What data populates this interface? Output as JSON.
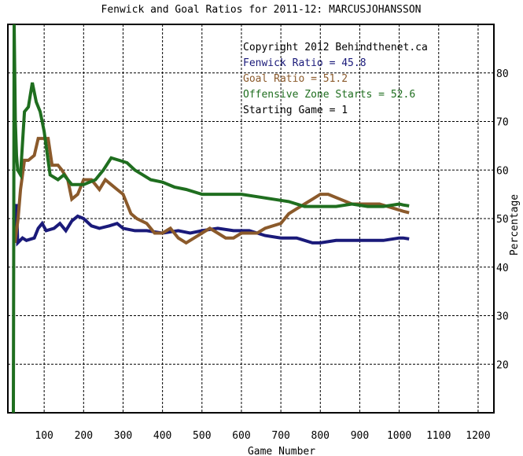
{
  "chart_data": {
    "type": "line",
    "title": "Fenwick and Goal Ratios for 2011-12: MARCUSJOHANSSON",
    "xlabel": "Game Number",
    "ylabel": "Percentage",
    "xlim": [
      8,
      1240
    ],
    "ylim": [
      10,
      90
    ],
    "x_ticks": [
      100,
      200,
      300,
      400,
      500,
      600,
      700,
      800,
      900,
      1000,
      1100,
      1200
    ],
    "y_ticks": [
      20,
      30,
      40,
      50,
      60,
      70,
      80
    ],
    "grid": true,
    "legend": {
      "position": "top-right",
      "lines": [
        {
          "text": "Copyright 2012 Behindthenet.ca",
          "color": "#000000"
        },
        {
          "text": "Fenwick Ratio = 45.8",
          "color": "#1a1a7a"
        },
        {
          "text": "Goal Ratio = 51.2",
          "color": "#8b5a2b"
        },
        {
          "text": "Offensive Zone Starts = 52.6",
          "color": "#1f6e1f"
        },
        {
          "text": "Starting Game = 1",
          "color": "#000000"
        }
      ]
    },
    "series": [
      {
        "name": "Fenwick Ratio",
        "color": "#1a1a7a",
        "points": [
          [
            26,
            45
          ],
          [
            30,
            53
          ],
          [
            33,
            45
          ],
          [
            45,
            46
          ],
          [
            55,
            45.5
          ],
          [
            75,
            46
          ],
          [
            85,
            48
          ],
          [
            95,
            49
          ],
          [
            105,
            47.5
          ],
          [
            125,
            48
          ],
          [
            140,
            49
          ],
          [
            155,
            47.5
          ],
          [
            170,
            49.5
          ],
          [
            185,
            50.5
          ],
          [
            200,
            50
          ],
          [
            220,
            48.5
          ],
          [
            240,
            48
          ],
          [
            265,
            48.5
          ],
          [
            285,
            49
          ],
          [
            300,
            48
          ],
          [
            330,
            47.5
          ],
          [
            360,
            47.5
          ],
          [
            400,
            47
          ],
          [
            440,
            47.5
          ],
          [
            470,
            47
          ],
          [
            500,
            47.5
          ],
          [
            540,
            48
          ],
          [
            580,
            47.5
          ],
          [
            620,
            47.5
          ],
          [
            660,
            46.5
          ],
          [
            700,
            46
          ],
          [
            740,
            46
          ],
          [
            780,
            45
          ],
          [
            800,
            45
          ],
          [
            840,
            45.5
          ],
          [
            880,
            45.5
          ],
          [
            920,
            45.5
          ],
          [
            960,
            45.5
          ],
          [
            1000,
            46
          ],
          [
            1010,
            46
          ],
          [
            1025,
            45.8
          ]
        ]
      },
      {
        "name": "Goal Ratio",
        "color": "#8b5a2b",
        "points": [
          [
            26,
            45
          ],
          [
            34,
            50
          ],
          [
            40,
            56
          ],
          [
            50,
            62
          ],
          [
            60,
            62
          ],
          [
            75,
            63
          ],
          [
            85,
            66.5
          ],
          [
            110,
            66.5
          ],
          [
            120,
            61
          ],
          [
            135,
            61
          ],
          [
            145,
            60
          ],
          [
            160,
            58
          ],
          [
            170,
            54
          ],
          [
            185,
            55
          ],
          [
            200,
            58
          ],
          [
            220,
            58
          ],
          [
            240,
            56
          ],
          [
            255,
            58
          ],
          [
            270,
            57
          ],
          [
            285,
            56
          ],
          [
            300,
            55
          ],
          [
            320,
            51
          ],
          [
            335,
            50
          ],
          [
            360,
            49
          ],
          [
            380,
            47
          ],
          [
            400,
            47
          ],
          [
            420,
            48
          ],
          [
            440,
            46
          ],
          [
            460,
            45
          ],
          [
            480,
            46
          ],
          [
            500,
            47
          ],
          [
            520,
            48
          ],
          [
            540,
            47
          ],
          [
            560,
            46
          ],
          [
            580,
            46
          ],
          [
            600,
            47
          ],
          [
            640,
            47
          ],
          [
            660,
            48
          ],
          [
            700,
            49
          ],
          [
            720,
            51
          ],
          [
            740,
            52
          ],
          [
            760,
            53
          ],
          [
            780,
            54
          ],
          [
            800,
            55
          ],
          [
            820,
            55
          ],
          [
            850,
            54
          ],
          [
            880,
            53
          ],
          [
            920,
            53
          ],
          [
            950,
            53
          ],
          [
            990,
            52
          ],
          [
            1010,
            51.5
          ],
          [
            1025,
            51.2
          ]
        ]
      },
      {
        "name": "Offensive Zone Starts",
        "color": "#1f6e1f",
        "points": [
          [
            22,
            10
          ],
          [
            24,
            90
          ],
          [
            27,
            70
          ],
          [
            30,
            63
          ],
          [
            33,
            60
          ],
          [
            40,
            59
          ],
          [
            50,
            72
          ],
          [
            60,
            73
          ],
          [
            70,
            78
          ],
          [
            80,
            74
          ],
          [
            90,
            72
          ],
          [
            100,
            68
          ],
          [
            115,
            59
          ],
          [
            135,
            58
          ],
          [
            150,
            59
          ],
          [
            170,
            57
          ],
          [
            185,
            57
          ],
          [
            200,
            57
          ],
          [
            230,
            58
          ],
          [
            250,
            60
          ],
          [
            270,
            62.5
          ],
          [
            290,
            62
          ],
          [
            310,
            61.5
          ],
          [
            330,
            60
          ],
          [
            350,
            59
          ],
          [
            370,
            58
          ],
          [
            400,
            57.5
          ],
          [
            430,
            56.5
          ],
          [
            460,
            56
          ],
          [
            500,
            55
          ],
          [
            530,
            55
          ],
          [
            560,
            55
          ],
          [
            600,
            55
          ],
          [
            640,
            54.5
          ],
          [
            680,
            54
          ],
          [
            720,
            53.5
          ],
          [
            760,
            52.5
          ],
          [
            800,
            52.5
          ],
          [
            840,
            52.5
          ],
          [
            880,
            53
          ],
          [
            920,
            52.5
          ],
          [
            960,
            52.5
          ],
          [
            1000,
            53
          ],
          [
            1010,
            52.8
          ],
          [
            1025,
            52.6
          ]
        ]
      }
    ]
  }
}
